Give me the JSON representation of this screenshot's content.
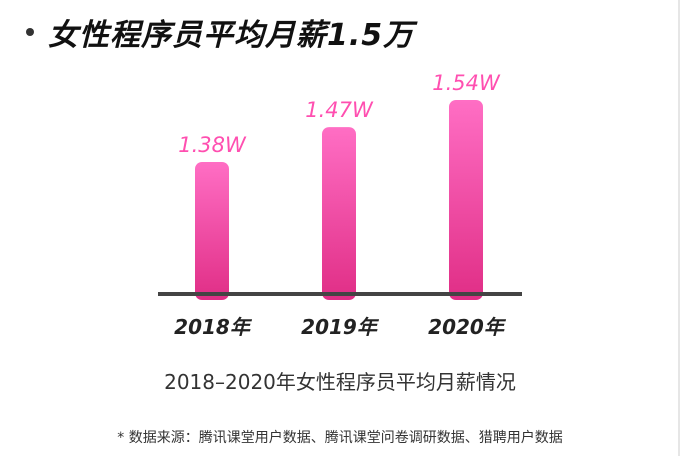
{
  "headline": "女性程序员平均月薪1.5万",
  "caption": "2018–2020年女性程序员平均月薪情况",
  "source_note": "* 数据来源：腾讯课堂用户数据、腾讯课堂问卷调研数据、猎聘用户数据",
  "colors": {
    "bar_top": "#ff6ec4",
    "bar_bottom": "#e02e86",
    "label": "#ff4fb0",
    "baseline": "#444444",
    "tick": "#222222"
  },
  "chart_data": {
    "type": "bar",
    "categories": [
      "2018年",
      "2019年",
      "2020年"
    ],
    "values": [
      1.38,
      1.47,
      1.54
    ],
    "value_labels": [
      "1.38W",
      "1.47W",
      "1.54W"
    ],
    "title": "",
    "xlabel": "",
    "ylabel": "",
    "ylim": [
      0,
      1.54
    ],
    "grid": false
  }
}
